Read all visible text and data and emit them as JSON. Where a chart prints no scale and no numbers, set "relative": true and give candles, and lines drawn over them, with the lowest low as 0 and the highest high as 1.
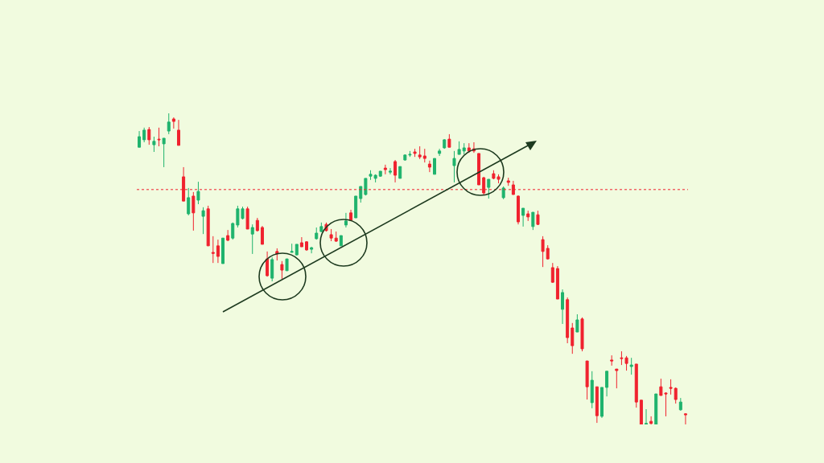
{
  "chart_data": {
    "type": "candlestick",
    "relative": true,
    "colors": [
      "#1fb36d",
      "#1fb36d",
      "#f0222e",
      "#1fb36d",
      "#f0222e",
      "#1fb36d",
      "#1fb36d",
      "#f0222e",
      "#f0222e",
      "#f0222e",
      "#1fb36d",
      "#f0222e",
      "#1fb36d",
      "#1fb36d",
      "#f0222e",
      "#f0222e",
      "#f0222e",
      "#1fb36d",
      "#f0222e",
      "#1fb36d",
      "#1fb36d",
      "#1fb36d",
      "#f0222e",
      "#1fb36d",
      "#f0222e",
      "#f0222e",
      "#f0222e",
      "#1fb36d",
      "#f0222e",
      "#f0222e",
      "#1fb36d",
      "#1fb36d",
      "#1fb36d",
      "#f0222e",
      "#f0222e",
      "#1fb36d",
      "#1fb36d",
      "#1fb36d",
      "#f0222e",
      "#f0222e",
      "#f0222e",
      "#1fb36d",
      "#1fb36d",
      "#f0222e",
      "#1fb36d",
      "#1fb36d",
      "#1fb36d",
      "#1fb36d",
      "#1fb36d",
      "#1fb36d",
      "#f0222e",
      "#1fb36d",
      "#f0222e",
      "#1fb36d",
      "#1fb36d",
      "#1fb36d",
      "#f0222e",
      "#f0222e",
      "#f0222e",
      "#f0222e",
      "#1fb36d",
      "#1fb36d",
      "#1fb36d",
      "#f0222e",
      "#1fb36d",
      "#1fb36d",
      "#1fb36d",
      "#f0222e",
      "#f0222e",
      "#f0222e",
      "#f0222e",
      "#1fb36d",
      "#f0222e",
      "#f0222e",
      "#1fb36d",
      "#f0222e",
      "#f0222e",
      "#f0222e",
      "#1fb36d",
      "#f0222e",
      "#1fb36d",
      "#f0222e",
      "#f0222e",
      "#f0222e",
      "#f0222e",
      "#f0222e",
      "#1fb36d",
      "#f0222e",
      "#f0222e",
      "#1fb36d",
      "#f0222e",
      "#f0222e",
      "#1fb36d",
      "#f0222e",
      "#1fb36d",
      "#1fb36d",
      "#f0222e",
      "#f0222e",
      "#f0222e",
      "#f0222e",
      "#1fb36d",
      "#f0222e",
      "#f0222e",
      "#1fb36d",
      "#f0222e",
      "#1fb36d",
      "#f0222e",
      "#f0222e",
      "#f0222e",
      "#f0222e",
      "#1fb36d",
      "#f0222e"
    ],
    "categories": [
      null,
      null,
      null,
      null,
      null,
      null,
      null,
      null,
      null,
      null,
      null,
      null,
      null,
      null,
      null,
      null,
      null,
      null,
      null,
      null,
      null,
      null,
      null,
      null,
      null,
      null,
      null,
      null,
      null,
      null,
      null,
      null,
      null,
      null,
      null,
      null,
      null,
      null,
      null,
      null,
      null,
      null,
      null,
      null,
      null,
      null,
      null,
      null,
      null,
      null,
      null,
      null,
      null,
      null,
      null,
      null,
      null,
      null,
      null,
      null,
      null,
      null,
      null,
      null,
      null,
      null,
      null,
      null,
      null,
      null,
      null,
      null,
      null,
      null,
      null,
      null,
      null,
      null,
      null,
      null,
      null,
      null,
      null,
      null,
      null,
      null,
      null,
      null,
      null,
      null,
      null,
      null,
      null,
      null,
      null,
      null,
      null,
      null,
      null,
      null,
      null,
      null,
      null,
      null,
      null,
      null,
      null,
      null,
      null,
      null,
      null,
      null
    ],
    "ohlc": [
      [
        0.891,
        0.943,
        0.891,
        0.925
      ],
      [
        0.915,
        0.954,
        0.907,
        0.946
      ],
      [
        0.948,
        0.956,
        0.899,
        0.915
      ],
      [
        0.899,
        0.925,
        0.876,
        0.91
      ],
      [
        0.917,
        0.954,
        0.894,
        0.915
      ],
      [
        0.902,
        0.92,
        0.827,
        0.92
      ],
      [
        0.943,
        1.0,
        0.933,
        0.972
      ],
      [
        0.982,
        0.987,
        0.951,
        0.974
      ],
      [
        0.946,
        0.979,
        0.897,
        0.897
      ],
      [
        0.796,
        0.827,
        0.718,
        0.718
      ],
      [
        0.677,
        0.76,
        0.672,
        0.729
      ],
      [
        0.734,
        0.747,
        0.623,
        0.68
      ],
      [
        0.721,
        0.78,
        0.708,
        0.749
      ],
      [
        0.669,
        0.698,
        0.612,
        0.687
      ],
      [
        0.693,
        0.703,
        0.574,
        0.574
      ],
      [
        0.553,
        0.605,
        0.519,
        0.55
      ],
      [
        0.574,
        0.594,
        0.519,
        0.54
      ],
      [
        0.517,
        0.599,
        0.517,
        0.599
      ],
      [
        0.607,
        0.625,
        0.589,
        0.592
      ],
      [
        0.599,
        0.649,
        0.594,
        0.646
      ],
      [
        0.641,
        0.703,
        0.633,
        0.693
      ],
      [
        0.662,
        0.7,
        0.659,
        0.693
      ],
      [
        0.693,
        0.7,
        0.628,
        0.628
      ],
      [
        0.612,
        0.643,
        0.548,
        0.633
      ],
      [
        0.656,
        0.664,
        0.62,
        0.623
      ],
      [
        0.633,
        0.638,
        0.579,
        0.579
      ],
      [
        0.532,
        0.556,
        0.475,
        0.478
      ],
      [
        0.47,
        0.537,
        0.46,
        0.53
      ],
      [
        0.556,
        0.566,
        0.527,
        0.548
      ],
      [
        0.514,
        0.525,
        0.468,
        0.496
      ],
      [
        0.494,
        0.532,
        0.494,
        0.532
      ],
      [
        0.553,
        0.581,
        0.553,
        0.556
      ],
      [
        0.545,
        0.579,
        0.543,
        0.579
      ],
      [
        0.584,
        0.602,
        0.571,
        0.571
      ],
      [
        0.587,
        0.589,
        0.558,
        0.561
      ],
      [
        0.563,
        0.571,
        0.55,
        0.568
      ],
      [
        0.597,
        0.633,
        0.594,
        0.615
      ],
      [
        0.62,
        0.649,
        0.618,
        0.636
      ],
      [
        0.643,
        0.649,
        0.62,
        0.623
      ],
      [
        0.61,
        0.628,
        0.589,
        0.599
      ],
      [
        0.599,
        0.62,
        0.587,
        0.589
      ],
      [
        0.574,
        0.607,
        0.574,
        0.607
      ],
      [
        0.641,
        0.68,
        0.633,
        0.654
      ],
      [
        0.68,
        0.69,
        0.656,
        0.656
      ],
      [
        0.664,
        0.734,
        0.664,
        0.734
      ],
      [
        0.726,
        0.765,
        0.713,
        0.765
      ],
      [
        0.739,
        0.791,
        0.736,
        0.791
      ],
      [
        0.798,
        0.817,
        0.786,
        0.804
      ],
      [
        0.791,
        0.804,
        0.778,
        0.801
      ],
      [
        0.798,
        0.814,
        0.796,
        0.814
      ],
      [
        0.824,
        0.835,
        0.804,
        0.819
      ],
      [
        0.811,
        0.824,
        0.804,
        0.814
      ],
      [
        0.845,
        0.85,
        0.778,
        0.801
      ],
      [
        0.791,
        0.829,
        0.791,
        0.829
      ],
      [
        0.85,
        0.868,
        0.848,
        0.866
      ],
      [
        0.866,
        0.879,
        0.86,
        0.868
      ],
      [
        0.876,
        0.886,
        0.86,
        0.871
      ],
      [
        0.866,
        0.894,
        0.853,
        0.86
      ],
      [
        0.863,
        0.886,
        0.842,
        0.855
      ],
      [
        0.837,
        0.848,
        0.811,
        0.827
      ],
      [
        0.804,
        0.855,
        0.804,
        0.855
      ],
      [
        0.871,
        0.886,
        0.863,
        0.879
      ],
      [
        0.889,
        0.917,
        0.886,
        0.915
      ],
      [
        0.917,
        0.933,
        0.891,
        0.891
      ],
      [
        0.832,
        0.879,
        0.778,
        0.855
      ],
      [
        0.868,
        0.91,
        0.868,
        0.884
      ],
      [
        0.879,
        0.904,
        0.868,
        0.889
      ],
      [
        0.889,
        0.904,
        0.873,
        0.879
      ],
      [
        0.886,
        0.907,
        0.873,
        0.879
      ],
      [
        0.871,
        0.871,
        0.77,
        0.77
      ],
      [
        0.793,
        0.796,
        0.739,
        0.744
      ],
      [
        0.762,
        0.788,
        0.726,
        0.788
      ],
      [
        0.806,
        0.817,
        0.788,
        0.791
      ],
      [
        0.796,
        0.804,
        0.775,
        0.788
      ],
      [
        0.729,
        0.765,
        0.724,
        0.76
      ],
      [
        0.783,
        0.793,
        0.767,
        0.778
      ],
      [
        0.77,
        0.783,
        0.739,
        0.739
      ],
      [
        0.734,
        0.736,
        0.643,
        0.651
      ],
      [
        0.672,
        0.695,
        0.636,
        0.695
      ],
      [
        0.677,
        0.687,
        0.654,
        0.667
      ],
      [
        0.636,
        0.682,
        0.625,
        0.682
      ],
      [
        0.674,
        0.687,
        0.641,
        0.643
      ],
      [
        0.594,
        0.605,
        0.506,
        0.556
      ],
      [
        0.566,
        0.576,
        0.53,
        0.532
      ],
      [
        0.504,
        0.519,
        0.455,
        0.457
      ],
      [
        0.501,
        0.509,
        0.403,
        0.403
      ],
      [
        0.37,
        0.434,
        0.323,
        0.424
      ],
      [
        0.401,
        0.408,
        0.261,
        0.279
      ],
      [
        0.31,
        0.326,
        0.227,
        0.253
      ],
      [
        0.297,
        0.354,
        0.297,
        0.336
      ],
      [
        0.339,
        0.344,
        0.235,
        0.243
      ],
      [
        0.204,
        0.204,
        0.08,
        0.121
      ],
      [
        0.07,
        0.171,
        0.052,
        0.142
      ],
      [
        0.121,
        0.121,
        0.005,
        0.028
      ],
      [
        0.026,
        0.119,
        0.021,
        0.119
      ],
      [
        0.119,
        0.171,
        0.09,
        0.171
      ],
      [
        0.207,
        0.222,
        0.189,
        0.204
      ],
      [
        0.178,
        0.178,
        0.116,
        0.173
      ],
      [
        0.214,
        0.235,
        0.191,
        0.212
      ],
      [
        0.214,
        0.22,
        0.173,
        0.196
      ],
      [
        0.186,
        0.214,
        0.16,
        0.191
      ],
      [
        0.194,
        0.194,
        0.054,
        0.072
      ],
      [
        0.078,
        0.078,
        0.0,
        0.0
      ],
      [
        0.0,
        0.049,
        0.0,
        0.003
      ],
      [
        0.01,
        0.026,
        0.0,
        0.003
      ],
      [
        0.0,
        0.098,
        0.0,
        0.098
      ],
      [
        0.121,
        0.147,
        0.093,
        0.093
      ],
      [
        0.101,
        0.103,
        0.026,
        0.098
      ],
      [
        0.119,
        0.145,
        0.096,
        0.116
      ],
      [
        0.116,
        0.119,
        0.067,
        0.08
      ],
      [
        0.047,
        0.085,
        0.044,
        0.072
      ],
      [
        0.034,
        0.036,
        0.0,
        0.031
      ]
    ],
    "ref_lines": [
      {
        "axis": "y",
        "value": 0.755,
        "color": "#f0222e",
        "line_style": "dotted"
      }
    ]
  }
}
